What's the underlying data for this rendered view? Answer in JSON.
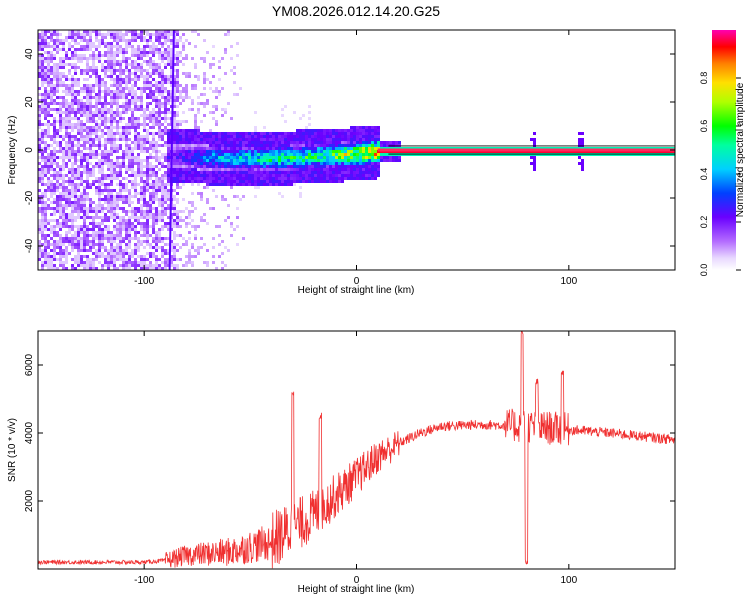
{
  "figure": {
    "title": "YM08.2026.012.14.20.G25"
  },
  "colors": {
    "signal": "#ff2a5f",
    "trace": "#f03030",
    "frame": "#000000"
  },
  "chart_data": [
    {
      "type": "heatmap",
      "title": "YM08.2026.012.14.20.G25",
      "xlabel": "Height of straight line (km)",
      "ylabel": "Frequency (Hz)",
      "xlim": [
        -150,
        150
      ],
      "ylim": [
        -50,
        50
      ],
      "xticks": [
        -100,
        0,
        100
      ],
      "yticks": [
        -40,
        -20,
        0,
        20,
        40
      ],
      "colorbar": {
        "label": "Normalized spectral amplitude",
        "range": [
          0,
          1
        ],
        "ticks": [
          "0.0",
          "0.2",
          "0.4",
          "0.6",
          "0.8"
        ],
        "ticks_values": [
          0.0,
          0.2,
          0.4,
          0.6,
          0.8
        ],
        "colormap": "rainbow (white-purple-blue-cyan-green-yellow-red-magenta)"
      },
      "signal_band": {
        "note": "narrow high-amplitude band near 0 Hz",
        "x_start": -90,
        "x_end": 150,
        "frequency": [
          {
            "x": -85,
            "f": -2
          },
          {
            "x": -60,
            "f": -3
          },
          {
            "x": -40,
            "f": -3
          },
          {
            "x": -20,
            "f": -2
          },
          {
            "x": 0,
            "f": -1
          },
          {
            "x": 10,
            "f": 0
          },
          {
            "x": 150,
            "f": 0
          }
        ],
        "amplitude": [
          {
            "x": -85,
            "a": 0.25
          },
          {
            "x": -70,
            "a": 0.45
          },
          {
            "x": -50,
            "a": 0.55
          },
          {
            "x": -30,
            "a": 0.6
          },
          {
            "x": -10,
            "a": 0.7
          },
          {
            "x": 10,
            "a": 0.95
          },
          {
            "x": 150,
            "a": 0.95
          }
        ],
        "spikes_x": [
          -10,
          82,
          105
        ]
      },
      "noise_region": {
        "x_start": -150,
        "x_end": -85,
        "amplitude": 0.15,
        "sparse_until": -50
      }
    },
    {
      "type": "line",
      "xlabel": "Height of straight line (km)",
      "ylabel": "SNR (10 * v/v)",
      "xlim": [
        -150,
        150
      ],
      "ylim": [
        0,
        7000
      ],
      "xticks": [
        -100,
        0,
        100
      ],
      "yticks": [
        2000,
        4000,
        6000
      ],
      "trend": [
        {
          "x": -150,
          "y": 200
        },
        {
          "x": -100,
          "y": 200
        },
        {
          "x": -90,
          "y": 250
        },
        {
          "x": -80,
          "y": 400
        },
        {
          "x": -60,
          "y": 500
        },
        {
          "x": -40,
          "y": 800
        },
        {
          "x": -20,
          "y": 1600
        },
        {
          "x": 0,
          "y": 2700
        },
        {
          "x": 10,
          "y": 3300
        },
        {
          "x": 20,
          "y": 3700
        },
        {
          "x": 30,
          "y": 4000
        },
        {
          "x": 40,
          "y": 4200
        },
        {
          "x": 60,
          "y": 4250
        },
        {
          "x": 80,
          "y": 4200
        },
        {
          "x": 100,
          "y": 4100
        },
        {
          "x": 120,
          "y": 4000
        },
        {
          "x": 150,
          "y": 3800
        }
      ],
      "peaks": [
        {
          "x": -30,
          "y": 5200
        },
        {
          "x": -17,
          "y": 4500
        },
        {
          "x": 78,
          "y": 7000
        },
        {
          "x": 80,
          "y": 200
        },
        {
          "x": 85,
          "y": 5500
        },
        {
          "x": 97,
          "y": 5800
        }
      ]
    }
  ]
}
